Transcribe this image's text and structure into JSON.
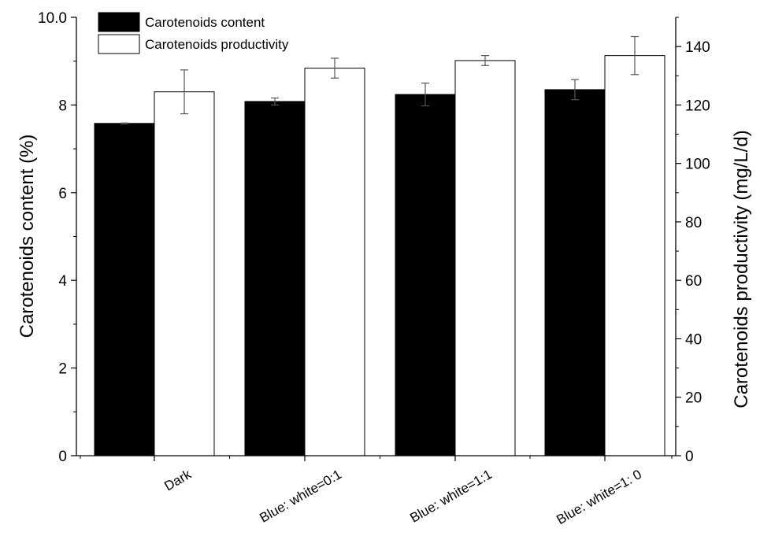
{
  "chart_data": {
    "type": "bar",
    "categories": [
      "Dark",
      "Blue: white=0:1",
      "Blue: white=1:1",
      "Blue: white=1: 0"
    ],
    "series": [
      {
        "name": "Carotenoids content",
        "axis": "left",
        "fill": "#000000",
        "values": [
          7.58,
          8.08,
          8.24,
          8.35
        ],
        "errors": [
          0.01,
          0.08,
          0.26,
          0.23
        ]
      },
      {
        "name": "Carotenoids productivity",
        "axis": "right",
        "fill": "#ffffff",
        "values": [
          124.5,
          132.6,
          135.2,
          136.9
        ],
        "errors": [
          7.5,
          3.4,
          1.7,
          6.5
        ]
      }
    ],
    "ylabel_left": "Carotenoids content (%)",
    "ylabel_right": "Carotenoids productivity (mg/L/d)",
    "ylim_left": [
      0,
      10
    ],
    "ylim_right": [
      0,
      150
    ],
    "yticks_left": [
      "0",
      "2",
      "4",
      "6",
      "8",
      "10.0"
    ],
    "yticks_left_values": [
      0,
      2,
      4,
      6,
      8,
      10
    ],
    "yticks_right": [
      "0",
      "20",
      "40",
      "60",
      "80",
      "100",
      "120",
      "140"
    ],
    "yticks_right_values": [
      0,
      20,
      40,
      60,
      80,
      100,
      120,
      140
    ],
    "legend_position": "top-left",
    "grid": false
  }
}
